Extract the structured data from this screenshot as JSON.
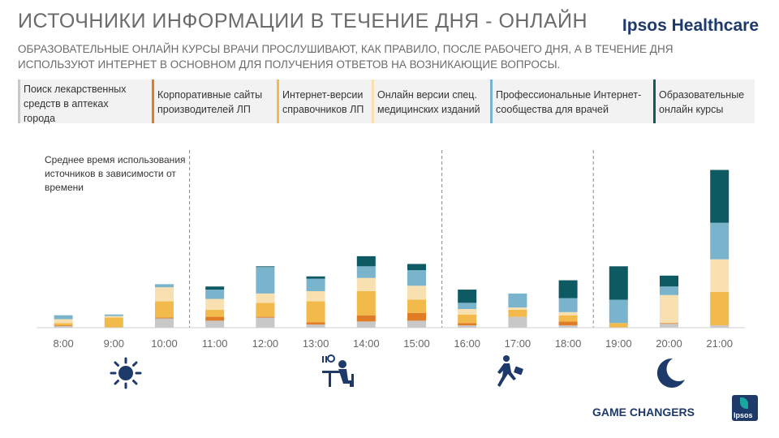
{
  "header": {
    "title": "ИСТОЧНИКИ ИНФОРМАЦИИ В ТЕЧЕНИЕ ДНЯ - ОНЛАЙН",
    "brand": "Ipsos Healthcare",
    "subtitle": "ОБРАЗОВАТЕЛЬНЫЕ ОНЛАЙН КУРСЫ ВРАЧИ ПРОСЛУШИВАЮТ, КАК ПРАВИЛО, ПОСЛЕ РАБОЧЕГО ДНЯ, А В ТЕЧЕНИЕ ДНЯ ИСПОЛЬЗУЮТ ИНТЕРНЕТ В ОСНОВНОМ ДЛЯ ПОЛУЧЕНИЯ ОТВЕТОВ НА ВОЗНИКАЮЩИЕ ВОПРОСЫ."
  },
  "legend": [
    {
      "label": "Поиск лекарственных средств в аптеках города",
      "color": "#c8c8c8"
    },
    {
      "label": "Корпоративные сайты производителей ЛП",
      "color": "#e07b26"
    },
    {
      "label": "Интернет-версии справочников ЛП",
      "color": "#f2b94b"
    },
    {
      "label": "Онлайн версии спец. медицинских изданий",
      "color": "#f9e0b0"
    },
    {
      "label": "Профессиональные Интернет-сообщества для врачей",
      "color": "#7ab3cc"
    },
    {
      "label": "Образовательные онлайн курсы",
      "color": "#0e5a63"
    }
  ],
  "note": "Среднее время использования источников в зависимости от времени",
  "footer": {
    "tagline": "GAME CHANGERS",
    "logo_text": "Ipsos"
  },
  "icons": [
    "sun-icon",
    "lunch-icon",
    "walking-icon",
    "moon-icon"
  ],
  "chart_data": {
    "type": "bar",
    "stacked": true,
    "title": "Среднее время использования источников в зависимости от времени",
    "categories": [
      "8:00",
      "9:00",
      "10:00",
      "11:00",
      "12:00",
      "13:00",
      "14:00",
      "15:00",
      "16:00",
      "17:00",
      "18:00",
      "19:00",
      "20:00",
      "21:00"
    ],
    "series": [
      {
        "name": "Поиск лекарственных средств в аптеках города",
        "color": "#c8c8c8",
        "values": [
          2,
          0,
          12,
          9,
          13,
          4,
          8,
          9,
          3,
          14,
          3,
          0,
          5,
          3
        ]
      },
      {
        "name": "Корпоративные сайты производителей ЛП",
        "color": "#e07b26",
        "values": [
          1,
          0,
          1,
          5,
          1,
          3,
          8,
          10,
          3,
          0,
          5,
          0,
          1,
          0
        ]
      },
      {
        "name": "Интернет-версии справочников ЛП",
        "color": "#f2b94b",
        "values": [
          3,
          13,
          21,
          9,
          18,
          27,
          31,
          17,
          11,
          9,
          8,
          6,
          0,
          43
        ]
      },
      {
        "name": "Онлайн версии спец. медицинских изданий",
        "color": "#f9e0b0",
        "values": [
          5,
          2,
          18,
          14,
          12,
          13,
          17,
          18,
          7,
          3,
          4,
          0,
          36,
          42
        ]
      },
      {
        "name": "Профессиональные Интернет-сообщества для врачей",
        "color": "#7ab3cc",
        "values": [
          5,
          2,
          4,
          12,
          34,
          16,
          15,
          20,
          8,
          18,
          18,
          30,
          11,
          47
        ]
      },
      {
        "name": "Образовательные онлайн курсы",
        "color": "#0e5a63",
        "values": [
          0,
          0,
          0,
          4,
          1,
          3,
          13,
          8,
          17,
          0,
          23,
          43,
          14,
          68
        ]
      }
    ],
    "ylim": [
      0,
      215
    ],
    "xlabel": "",
    "ylabel": "",
    "grid": false,
    "legend_position": "top",
    "dividers_after": [
      "10:00",
      "15:00",
      "18:00"
    ]
  }
}
